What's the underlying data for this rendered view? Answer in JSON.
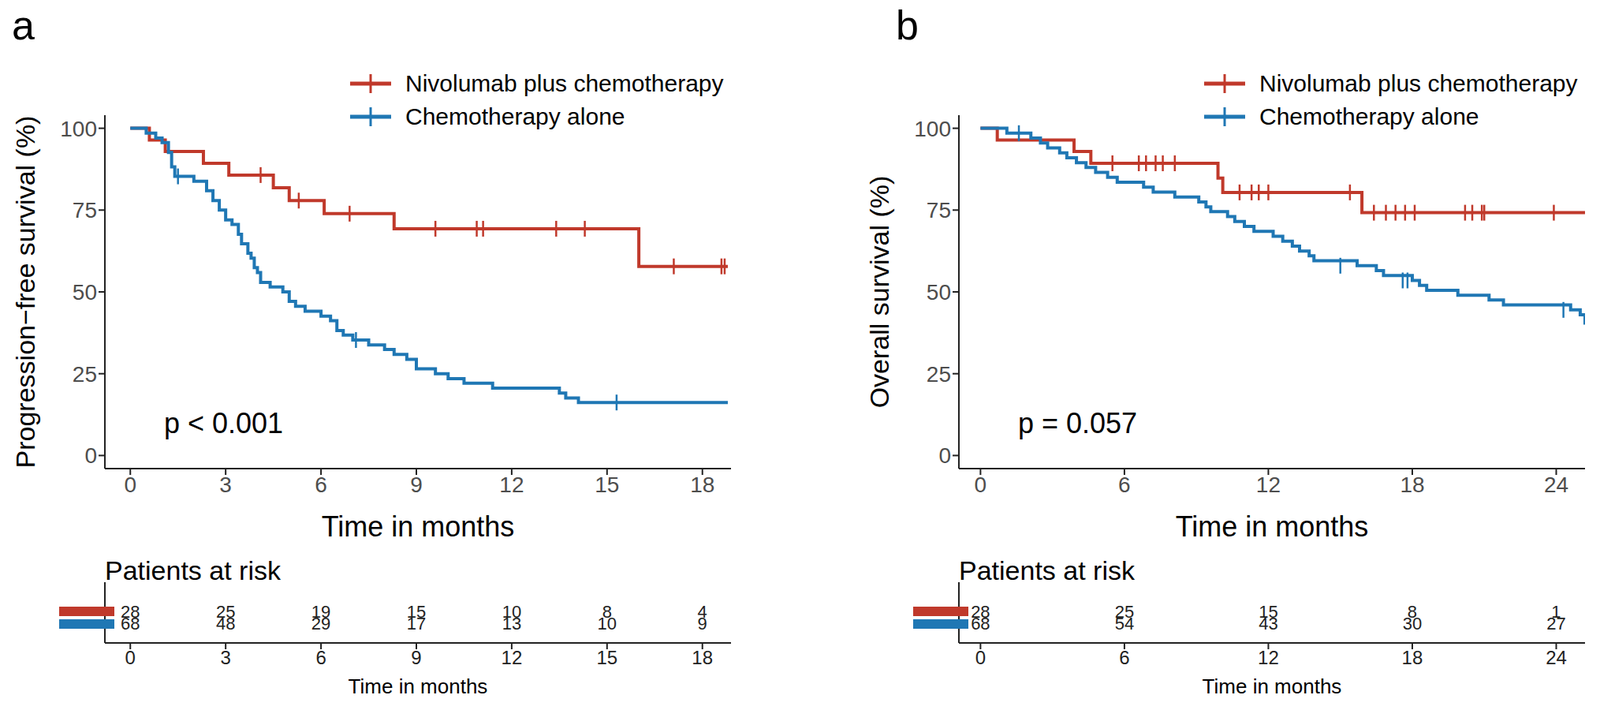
{
  "chart_data": [
    {
      "type": "step",
      "title": "a",
      "x_label": "Time in months",
      "y_label": "Progression−free survival (%)",
      "xlim": [
        -0.8,
        18.9
      ],
      "xticks": [
        0,
        3,
        6,
        9,
        12,
        15,
        18
      ],
      "ylim": [
        -4,
        104
      ],
      "yticks": [
        0,
        25,
        50,
        75,
        100
      ],
      "legend": "top-right",
      "annotation": "p < 0.001",
      "marker": "|",
      "series": [
        {
          "name": "Nivolumab plus chemotherapy",
          "color": "#c0392b",
          "x": [
            0,
            0.6,
            1.1,
            2.3,
            3.1,
            4.5,
            5.0,
            6.1,
            8.3,
            16.0,
            18.8
          ],
          "values": [
            100,
            96.4,
            92.9,
            89.3,
            85.7,
            81.8,
            77.9,
            73.9,
            69.3,
            57.8,
            57.8
          ],
          "censored": {
            "x": [
              4.1,
              5.3,
              6.9,
              9.6,
              10.9,
              11.1,
              13.4,
              14.3,
              17.1,
              18.6,
              18.7
            ],
            "values": [
              85.7,
              77.9,
              73.9,
              69.3,
              69.3,
              69.3,
              69.3,
              69.3,
              57.8,
              57.8,
              57.8
            ]
          }
        },
        {
          "name": "Chemotherapy alone",
          "color": "#1f77b4",
          "x": [
            0,
            0.5,
            0.8,
            1.0,
            1.2,
            1.3,
            1.4,
            2.0,
            2.4,
            2.6,
            2.8,
            3.0,
            3.2,
            3.4,
            3.5,
            3.7,
            3.8,
            3.9,
            4.0,
            4.1,
            4.4,
            4.8,
            5.0,
            5.2,
            5.5,
            6.0,
            6.3,
            6.5,
            6.7,
            7.0,
            7.5,
            8.0,
            8.3,
            8.7,
            9.0,
            9.6,
            10.0,
            10.5,
            11.4,
            13.5,
            13.7,
            14.1,
            18.8
          ],
          "values": [
            100,
            98.5,
            97,
            95.6,
            92.6,
            88.2,
            85.3,
            83.8,
            80.9,
            77.9,
            75,
            72,
            70.6,
            67.6,
            64.7,
            61.8,
            60.3,
            57.4,
            55.9,
            52.9,
            51.5,
            50,
            47.1,
            45.6,
            44.1,
            42.6,
            41.2,
            38.2,
            36.8,
            35.3,
            33.8,
            32.4,
            30.9,
            29.4,
            26.5,
            25,
            23.5,
            22.1,
            20.6,
            19.1,
            17.6,
            16.2,
            16.2
          ],
          "censored": {
            "x": [
              1.5,
              7.1,
              15.3
            ],
            "values": [
              85.3,
              35.3,
              16.2
            ]
          }
        }
      ],
      "risk_table": {
        "title": "Patients at risk",
        "x_label": "Time in months",
        "x": [
          0,
          3,
          6,
          9,
          12,
          15,
          18
        ],
        "rows": [
          [
            28,
            25,
            19,
            15,
            10,
            8,
            4
          ],
          [
            68,
            48,
            29,
            17,
            13,
            10,
            9
          ]
        ]
      }
    },
    {
      "type": "step",
      "title": "b",
      "x_label": "Time in months",
      "y_label": "Overall survival (%)",
      "xlim": [
        -0.9,
        25.2
      ],
      "xticks": [
        0,
        6,
        12,
        18,
        24
      ],
      "ylim": [
        -4,
        104
      ],
      "yticks": [
        0,
        25,
        50,
        75,
        100
      ],
      "legend": "top-right",
      "annotation": "p = 0.057",
      "marker": "|",
      "series": [
        {
          "name": "Nivolumab plus chemotherapy",
          "color": "#c0392b",
          "x": [
            0,
            0.7,
            3.9,
            4.6,
            9.9,
            10.1,
            15.9,
            25.2
          ],
          "values": [
            100,
            96.4,
            92.9,
            89.3,
            84.8,
            80.4,
            74.2,
            74.2
          ],
          "censored": {
            "x": [
              5.5,
              6.6,
              6.9,
              7.3,
              7.6,
              8.1,
              10.8,
              11.3,
              11.6,
              12.0,
              15.4,
              16.4,
              16.9,
              17.3,
              17.7,
              18.1,
              20.2,
              20.5,
              20.9,
              21.0,
              23.9
            ],
            "values": [
              89.3,
              89.3,
              89.3,
              89.3,
              89.3,
              89.3,
              80.4,
              80.4,
              80.4,
              80.4,
              80.4,
              74.2,
              74.2,
              74.2,
              74.2,
              74.2,
              74.2,
              74.2,
              74.2,
              74.2,
              74.2
            ]
          }
        },
        {
          "name": "Chemotherapy alone",
          "color": "#1f77b4",
          "x": [
            0,
            1.1,
            2.1,
            2.5,
            2.8,
            3.3,
            3.6,
            4.0,
            4.4,
            4.8,
            5.3,
            5.7,
            6.8,
            7.2,
            8.1,
            9.1,
            9.4,
            9.6,
            10.3,
            10.6,
            11.0,
            11.4,
            12.2,
            12.6,
            13.0,
            13.3,
            13.7,
            13.9,
            15.7,
            16.5,
            16.8,
            18.0,
            18.3,
            18.6,
            19.9,
            21.2,
            21.8,
            24.6,
            25.0,
            25.2
          ],
          "values": [
            100,
            98.5,
            97,
            95.5,
            94,
            92.5,
            91,
            89.5,
            88,
            86.5,
            85,
            83.5,
            82,
            80.5,
            79,
            77.5,
            76,
            74.5,
            73,
            71.5,
            70,
            68.5,
            67,
            65.5,
            64,
            62.5,
            61,
            59.5,
            58,
            56.5,
            55,
            53.5,
            52,
            50.5,
            49,
            47.5,
            46,
            44.5,
            43,
            40
          ],
          "censored": {
            "x": [
              1.6,
              15.0,
              17.6,
              17.8,
              24.3
            ],
            "values": [
              98.5,
              58,
              53.5,
              53.5,
              44.5
            ]
          }
        }
      ],
      "risk_table": {
        "title": "Patients at risk",
        "x_label": "Time in months",
        "x": [
          0,
          6,
          12,
          18,
          24
        ],
        "rows": [
          [
            28,
            25,
            15,
            8,
            1
          ],
          [
            68,
            54,
            43,
            30,
            27
          ]
        ]
      }
    }
  ]
}
